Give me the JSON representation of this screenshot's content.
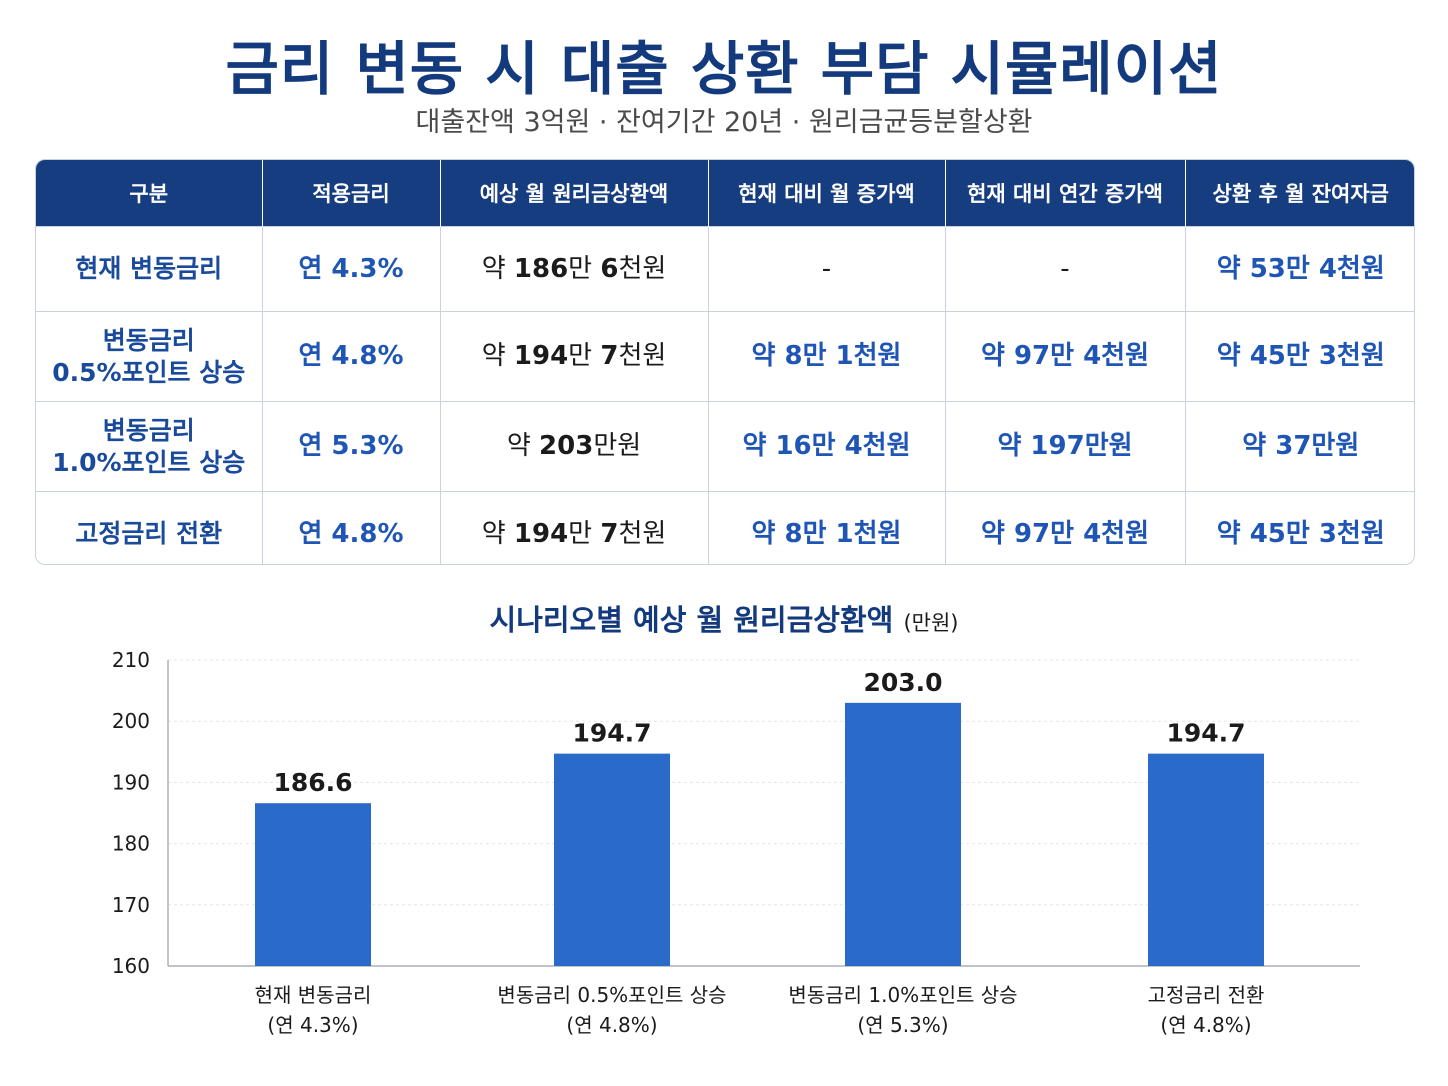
{
  "header": {
    "title": "금리 변동 시 대출 상환 부담 시뮬레이션",
    "subtitle": "대출잔액 3억원 · 잔여기간 20년 · 원리금균등분할상환"
  },
  "table": {
    "columns": [
      "구분",
      "적용금리",
      "예상 월 원리금상환액",
      "현재 대비 월 증가액",
      "현재 대비 연간 증가액",
      "상환 후 월 잔여자금"
    ],
    "rows": [
      {
        "category_line1": "현재 변동금리",
        "category_line2": "",
        "rate": "연 4.3%",
        "payment_prefix": "약 ",
        "payment_num": "186",
        "payment_mid": "만 ",
        "payment_num2": "6",
        "payment_suffix": "천원",
        "monthly_increase": "-",
        "annual_increase": "-",
        "remaining": "약 53만 4천원"
      },
      {
        "category_line1": "변동금리",
        "category_line2": "0.5%포인트 상승",
        "rate": "연 4.8%",
        "payment_prefix": "약 ",
        "payment_num": "194",
        "payment_mid": "만 ",
        "payment_num2": "7",
        "payment_suffix": "천원",
        "monthly_increase": "약 8만 1천원",
        "annual_increase": "약 97만 4천원",
        "remaining": "약 45만 3천원"
      },
      {
        "category_line1": "변동금리",
        "category_line2": "1.0%포인트 상승",
        "rate": "연 5.3%",
        "payment_prefix": "약 ",
        "payment_num": "203",
        "payment_mid": "만원",
        "payment_num2": "",
        "payment_suffix": "",
        "monthly_increase": "약 16만 4천원",
        "annual_increase": "약 197만원",
        "remaining": "약 37만원"
      },
      {
        "category_line1": "고정금리 전환",
        "category_line2": "",
        "rate": "연 4.8%",
        "payment_prefix": "약 ",
        "payment_num": "194",
        "payment_mid": "만 ",
        "payment_num2": "7",
        "payment_suffix": "천원",
        "monthly_increase": "약 8만 1천원",
        "annual_increase": "약 97만 4천원",
        "remaining": "약 45만 3천원"
      }
    ]
  },
  "chart_data": {
    "type": "bar",
    "title": "시나리오별 예상 월 원리금상환액",
    "unit": "(만원)",
    "categories": [
      "현재 변동금리",
      "변동금리 0.5%포인트 상승",
      "변동금리 1.0%포인트 상승",
      "고정금리 전환"
    ],
    "category_sublabels": [
      "(연 4.3%)",
      "(연 4.8%)",
      "(연 5.3%)",
      "(연 4.8%)"
    ],
    "values": [
      186.6,
      194.7,
      203.0,
      194.7
    ],
    "value_labels": [
      "186.6",
      "194.7",
      "203.0",
      "194.7"
    ],
    "ylim": [
      160,
      210
    ],
    "yticks": [
      160,
      170,
      180,
      190,
      200,
      210
    ],
    "grid": true,
    "bar_color": "#2a6ac8"
  }
}
